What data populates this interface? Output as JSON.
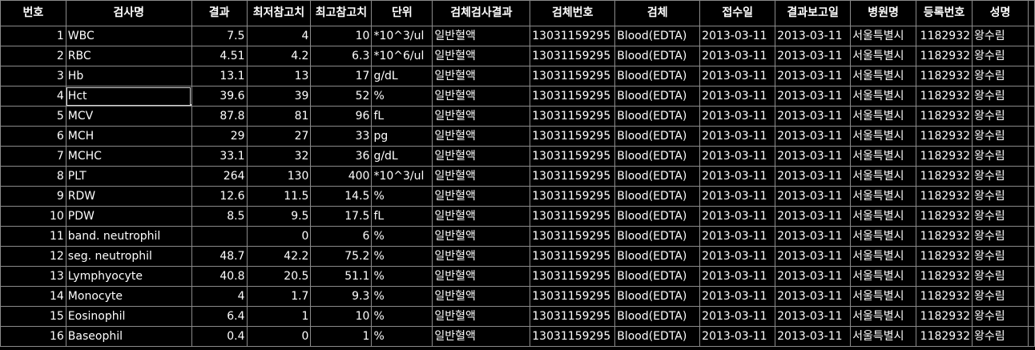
{
  "grid": {
    "columns": [
      "번호",
      "검사명",
      "결과",
      "최저참고치",
      "최고참고치",
      "단위",
      "검체검사결과",
      "검체번호",
      "검체",
      "접수일",
      "결과보고일",
      "병원명",
      "등록번호",
      "성명",
      ""
    ],
    "rows": [
      [
        "1",
        "WBC",
        "7.5",
        "4",
        "10",
        "*10^3/ul",
        "일반혈액",
        "13031159295",
        "Blood(EDTA)",
        "2013-03-11",
        "2013-03-11",
        "서울특별시",
        "1182932",
        "왕수림",
        ""
      ],
      [
        "2",
        "RBC",
        "4.51",
        "4.2",
        "6.3",
        "*10^6/ul",
        "일반혈액",
        "13031159295",
        "Blood(EDTA)",
        "2013-03-11",
        "2013-03-11",
        "서울특별시",
        "1182932",
        "왕수림",
        ""
      ],
      [
        "3",
        "Hb",
        "13.1",
        "13",
        "17",
        "g/dL",
        "일반혈액",
        "13031159295",
        "Blood(EDTA)",
        "2013-03-11",
        "2013-03-11",
        "서울특별시",
        "1182932",
        "왕수림",
        ""
      ],
      [
        "4",
        "Hct",
        "39.6",
        "39",
        "52",
        "%",
        "일반혈액",
        "13031159295",
        "Blood(EDTA)",
        "2013-03-11",
        "2013-03-11",
        "서울특별시",
        "1182932",
        "왕수림",
        ""
      ],
      [
        "5",
        "MCV",
        "87.8",
        "81",
        "96",
        "fL",
        "일반혈액",
        "13031159295",
        "Blood(EDTA)",
        "2013-03-11",
        "2013-03-11",
        "서울특별시",
        "1182932",
        "왕수림",
        ""
      ],
      [
        "6",
        "MCH",
        "29",
        "27",
        "33",
        "pg",
        "일반혈액",
        "13031159295",
        "Blood(EDTA)",
        "2013-03-11",
        "2013-03-11",
        "서울특별시",
        "1182932",
        "왕수림",
        ""
      ],
      [
        "7",
        "MCHC",
        "33.1",
        "32",
        "36",
        "g/dL",
        "일반혈액",
        "13031159295",
        "Blood(EDTA)",
        "2013-03-11",
        "2013-03-11",
        "서울특별시",
        "1182932",
        "왕수림",
        ""
      ],
      [
        "8",
        "PLT",
        "264",
        "130",
        "400",
        "*10^3/ul",
        "일반혈액",
        "13031159295",
        "Blood(EDTA)",
        "2013-03-11",
        "2013-03-11",
        "서울특별시",
        "1182932",
        "왕수림",
        ""
      ],
      [
        "9",
        "RDW",
        "12.6",
        "11.5",
        "14.5",
        "%",
        "일반혈액",
        "13031159295",
        "Blood(EDTA)",
        "2013-03-11",
        "2013-03-11",
        "서울특별시",
        "1182932",
        "왕수림",
        ""
      ],
      [
        "10",
        "PDW",
        "8.5",
        "9.5",
        "17.5",
        "fL",
        "일반혈액",
        "13031159295",
        "Blood(EDTA)",
        "2013-03-11",
        "2013-03-11",
        "서울특별시",
        "1182932",
        "왕수림",
        ""
      ],
      [
        "11",
        "band. neutrophil",
        "",
        "0",
        "6",
        "%",
        "일반혈액",
        "13031159295",
        "Blood(EDTA)",
        "2013-03-11",
        "2013-03-11",
        "서울특별시",
        "1182932",
        "왕수림",
        ""
      ],
      [
        "12",
        "seg. neutrophil",
        "48.7",
        "42.2",
        "75.2",
        "%",
        "일반혈액",
        "13031159295",
        "Blood(EDTA)",
        "2013-03-11",
        "2013-03-11",
        "서울특별시",
        "1182932",
        "왕수림",
        ""
      ],
      [
        "13",
        "Lymphyocyte",
        "40.8",
        "20.5",
        "51.1",
        "%",
        "일반혈액",
        "13031159295",
        "Blood(EDTA)",
        "2013-03-11",
        "2013-03-11",
        "서울특별시",
        "1182932",
        "왕수림",
        ""
      ],
      [
        "14",
        "Monocyte",
        "4",
        "1.7",
        "9.3",
        "%",
        "일반혈액",
        "13031159295",
        "Blood(EDTA)",
        "2013-03-11",
        "2013-03-11",
        "서울특별시",
        "1182932",
        "왕수림",
        ""
      ],
      [
        "15",
        "Eosinophil",
        "6.4",
        "1",
        "10",
        "%",
        "일반혈액",
        "13031159295",
        "Blood(EDTA)",
        "2013-03-11",
        "2013-03-11",
        "서울특별시",
        "1182932",
        "왕수림",
        ""
      ],
      [
        "16",
        "Baseophil",
        "0.4",
        "0",
        "1",
        "%",
        "일반혈액",
        "13031159295",
        "Blood(EDTA)",
        "2013-03-11",
        "2013-03-11",
        "서울특별시",
        "1182932",
        "왕수림",
        ""
      ]
    ]
  }
}
